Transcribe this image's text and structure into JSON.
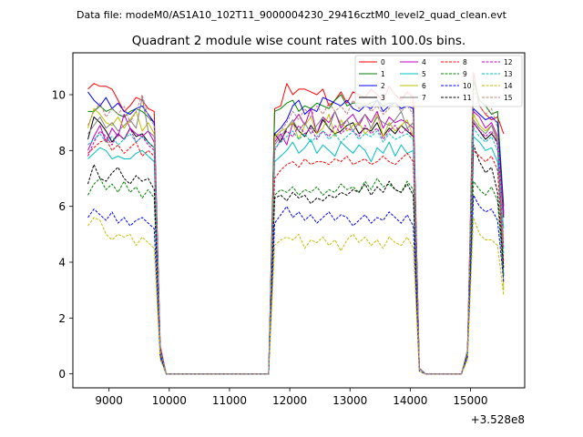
{
  "figure": {
    "suptitle": "Data file: modeM0/AS1A10_102T11_9000004230_29416cztM0_level2_quad_clean.evt"
  },
  "chart_data": {
    "type": "line",
    "title": "Quadrant 2 module wise count rates with 100.0s bins.",
    "xlabel": "",
    "ylabel": "",
    "x_offset_label": "+3.528e8",
    "xlim": [
      8400,
      15900
    ],
    "ylim": [
      -0.5,
      11.5
    ],
    "x_ticks": [
      9000,
      10000,
      11000,
      12000,
      13000,
      14000,
      15000
    ],
    "x_tick_labels": [
      "9000",
      "10000",
      "11000",
      "12000",
      "13000",
      "14000",
      "15000"
    ],
    "y_ticks": [
      0,
      2,
      4,
      6,
      8,
      10
    ],
    "y_tick_labels": [
      "0",
      "2",
      "4",
      "6",
      "8",
      "10"
    ],
    "grid": false,
    "legend_position": "top-right",
    "x": [
      8650,
      8750,
      8850,
      8950,
      9050,
      9150,
      9250,
      9350,
      9450,
      9550,
      9650,
      9750,
      9850,
      9950,
      10050,
      10150,
      10250,
      10350,
      10450,
      10550,
      10650,
      10750,
      10850,
      10950,
      11050,
      11150,
      11250,
      11350,
      11450,
      11550,
      11650,
      11750,
      11850,
      11950,
      12050,
      12150,
      12250,
      12350,
      12450,
      12550,
      12650,
      12750,
      12850,
      12950,
      13050,
      13150,
      13250,
      13350,
      13450,
      13550,
      13650,
      13750,
      13850,
      13950,
      14050,
      14150,
      14250,
      14350,
      14450,
      14550,
      14650,
      14750,
      14850,
      14950,
      15050,
      15150,
      15250,
      15350,
      15450,
      15550
    ],
    "series": [
      {
        "name": "0",
        "color": "#ff0000",
        "dashed": false,
        "values": [
          10.2,
          10.4,
          10.3,
          10.3,
          10.2,
          9.8,
          9.4,
          9.6,
          9.9,
          9.8,
          9.5,
          9.4,
          1.0,
          0.0,
          0,
          0,
          0,
          0,
          0,
          0,
          0,
          0,
          0,
          0,
          0,
          0,
          0,
          0,
          0,
          0,
          0,
          9.5,
          9.6,
          10.4,
          10.0,
          10.2,
          10.2,
          10.1,
          10.0,
          10.2,
          9.6,
          9.8,
          10.1,
          9.7,
          10.1,
          10.0,
          9.9,
          10.2,
          10.0,
          9.8,
          10.3,
          10.0,
          9.8,
          10.1,
          9.9,
          0.2,
          0,
          0,
          0,
          0,
          0,
          0,
          0,
          0.8,
          10.8,
          9.6,
          9.3,
          9.1,
          9.2,
          8.6
        ]
      },
      {
        "name": "1",
        "color": "#008000",
        "dashed": false,
        "values": [
          9.4,
          9.4,
          9.6,
          9.4,
          9.5,
          9.3,
          9.2,
          9.4,
          9.5,
          9.4,
          9.2,
          9.0,
          0.9,
          0.0,
          0,
          0,
          0,
          0,
          0,
          0,
          0,
          0,
          0,
          0,
          0,
          0,
          0,
          0,
          0,
          0,
          0,
          9.4,
          9.5,
          9.7,
          9.8,
          9.4,
          9.6,
          9.5,
          9.7,
          9.6,
          9.5,
          9.8,
          10.0,
          9.6,
          9.7,
          9.7,
          9.6,
          9.7,
          9.8,
          9.6,
          9.7,
          9.7,
          9.5,
          9.6,
          9.5,
          0.2,
          0,
          0,
          0,
          0,
          0,
          0,
          0,
          0.8,
          10.5,
          9.8,
          9.6,
          9.3,
          9.4,
          6.0
        ]
      },
      {
        "name": "2",
        "color": "#0000ff",
        "dashed": false,
        "values": [
          10.1,
          9.8,
          9.6,
          9.9,
          9.5,
          9.7,
          9.4,
          9.3,
          9.5,
          9.6,
          9.3,
          9.0,
          0.9,
          0.0,
          0,
          0,
          0,
          0,
          0,
          0,
          0,
          0,
          0,
          0,
          0,
          0,
          0,
          0,
          0,
          0,
          0,
          8.6,
          8.8,
          9.1,
          9.6,
          9.8,
          9.3,
          9.5,
          9.4,
          9.9,
          9.8,
          9.7,
          9.6,
          9.8,
          9.5,
          9.4,
          9.6,
          9.5,
          9.8,
          9.4,
          9.6,
          9.7,
          9.5,
          9.6,
          9.5,
          0.2,
          0,
          0,
          0,
          0,
          0,
          0,
          0,
          0.8,
          9.5,
          9.3,
          9.1,
          9.2,
          9.0,
          5.8
        ]
      },
      {
        "name": "3",
        "color": "#000000",
        "dashed": false,
        "values": [
          8.4,
          9.2,
          9.0,
          8.7,
          8.3,
          8.6,
          8.4,
          8.8,
          8.5,
          8.6,
          8.3,
          8.1,
          0.8,
          0.0,
          0,
          0,
          0,
          0,
          0,
          0,
          0,
          0,
          0,
          0,
          0,
          0,
          0,
          0,
          0,
          0,
          0,
          8.6,
          8.3,
          8.8,
          9.0,
          8.7,
          8.5,
          8.9,
          8.6,
          9.1,
          8.8,
          8.6,
          8.7,
          8.9,
          9.0,
          8.6,
          8.8,
          8.7,
          9.0,
          8.5,
          8.8,
          8.6,
          8.9,
          8.7,
          8.5,
          0.2,
          0,
          0,
          0,
          0,
          0,
          0,
          0,
          0.8,
          9.0,
          8.7,
          8.4,
          8.6,
          8.3,
          5.6
        ]
      },
      {
        "name": "4",
        "color": "#bf00bf",
        "dashed": false,
        "values": [
          8.0,
          8.5,
          8.9,
          8.3,
          8.8,
          8.5,
          9.3,
          8.8,
          8.6,
          8.5,
          8.7,
          8.3,
          0.8,
          0.0,
          0,
          0,
          0,
          0,
          0,
          0,
          0,
          0,
          0,
          0,
          0,
          0,
          0,
          0,
          0,
          0,
          0,
          8.3,
          8.6,
          8.2,
          9.0,
          9.3,
          8.9,
          9.5,
          8.6,
          9.2,
          9.0,
          9.4,
          8.8,
          9.1,
          9.3,
          8.9,
          9.3,
          9.0,
          9.4,
          8.8,
          9.2,
          9.0,
          9.1,
          9.0,
          8.8,
          0.2,
          0,
          0,
          0,
          0,
          0,
          0,
          0,
          0.8,
          9.4,
          9.2,
          8.8,
          9.0,
          8.5,
          5.7
        ]
      },
      {
        "name": "5",
        "color": "#00bfbf",
        "dashed": false,
        "values": [
          7.7,
          7.9,
          8.1,
          8.0,
          7.7,
          7.8,
          7.7,
          7.7,
          7.9,
          8.0,
          7.8,
          7.6,
          0.8,
          0.0,
          0,
          0,
          0,
          0,
          0,
          0,
          0,
          0,
          0,
          0,
          0,
          0,
          0,
          0,
          0,
          0,
          0,
          7.6,
          7.8,
          8.0,
          8.3,
          7.9,
          8.1,
          8.4,
          7.9,
          8.2,
          8.0,
          7.8,
          8.3,
          8.1,
          7.9,
          8.2,
          8.0,
          7.6,
          8.1,
          7.9,
          8.3,
          7.8,
          8.2,
          7.9,
          8.0,
          0.2,
          0,
          0,
          0,
          0,
          0,
          0,
          0,
          0.8,
          8.5,
          8.3,
          8.0,
          8.1,
          7.6,
          5.2
        ]
      },
      {
        "name": "6",
        "color": "#bfbf00",
        "dashed": false,
        "values": [
          8.8,
          9.5,
          9.3,
          9.0,
          8.9,
          9.2,
          8.8,
          9.1,
          9.4,
          8.7,
          9.0,
          8.6,
          0.8,
          0.0,
          0,
          0,
          0,
          0,
          0,
          0,
          0,
          0,
          0,
          0,
          0,
          0,
          0,
          0,
          0,
          0,
          0,
          8.5,
          8.7,
          8.8,
          9.0,
          8.4,
          8.9,
          9.2,
          8.6,
          8.8,
          9.3,
          8.5,
          9.1,
          8.7,
          8.9,
          9.0,
          8.6,
          8.8,
          9.3,
          8.5,
          9.0,
          8.7,
          8.9,
          9.1,
          8.5,
          0.2,
          0,
          0,
          0,
          0,
          0,
          0,
          0,
          0.8,
          9.3,
          8.9,
          8.7,
          8.9,
          8.4,
          3.0
        ]
      },
      {
        "name": "7",
        "color": "#808080",
        "dashed": false,
        "values": [
          8.6,
          8.9,
          9.2,
          8.8,
          9.0,
          8.7,
          8.9,
          9.1,
          8.8,
          9.9,
          8.7,
          8.5,
          0.8,
          0.0,
          0,
          0,
          0,
          0,
          0,
          0,
          0,
          0,
          0,
          0,
          0,
          0,
          0,
          0,
          0,
          0,
          0,
          8.2,
          8.5,
          8.8,
          9.1,
          8.7,
          9.0,
          8.6,
          8.9,
          9.2,
          8.8,
          9.4,
          8.9,
          9.1,
          8.7,
          9.0,
          9.3,
          8.8,
          9.2,
          9.0,
          8.9,
          9.1,
          9.4,
          8.8,
          9.0,
          0.2,
          0,
          0,
          0,
          0,
          0,
          0,
          0,
          0.8,
          9.1,
          8.8,
          8.6,
          8.9,
          8.3,
          3.5
        ]
      },
      {
        "name": "8",
        "color": "#ff0000",
        "dashed": true,
        "values": [
          7.9,
          8.1,
          8.3,
          8.4,
          8.0,
          8.2,
          7.9,
          8.1,
          8.3,
          7.8,
          8.0,
          7.8,
          0.8,
          0.0,
          0,
          0,
          0,
          0,
          0,
          0,
          0,
          0,
          0,
          0,
          0,
          0,
          0,
          0,
          0,
          0,
          0,
          7.0,
          7.3,
          7.5,
          7.6,
          7.4,
          7.7,
          7.5,
          7.6,
          7.6,
          7.5,
          7.7,
          7.6,
          7.8,
          7.5,
          7.6,
          7.7,
          7.5,
          7.6,
          7.8,
          7.6,
          7.5,
          7.7,
          7.9,
          7.6,
          0.2,
          0,
          0,
          0,
          0,
          0,
          0,
          0,
          0.8,
          8.0,
          7.8,
          7.6,
          7.8,
          7.3,
          4.0
        ]
      },
      {
        "name": "9",
        "color": "#008000",
        "dashed": true,
        "values": [
          6.4,
          6.8,
          7.0,
          6.6,
          6.8,
          6.5,
          6.9,
          6.5,
          6.7,
          6.3,
          6.6,
          6.3,
          0.7,
          0.0,
          0,
          0,
          0,
          0,
          0,
          0,
          0,
          0,
          0,
          0,
          0,
          0,
          0,
          0,
          0,
          0,
          0,
          6.4,
          6.6,
          6.5,
          6.7,
          6.4,
          6.6,
          6.5,
          6.7,
          6.4,
          6.6,
          6.5,
          6.8,
          6.6,
          6.7,
          6.5,
          6.9,
          6.6,
          7.0,
          6.7,
          6.8,
          6.6,
          6.5,
          6.9,
          6.6,
          0.2,
          0,
          0,
          0,
          0,
          0,
          0,
          0,
          0.7,
          6.9,
          6.6,
          6.4,
          6.7,
          6.2,
          3.5
        ]
      },
      {
        "name": "10",
        "color": "#0000ff",
        "dashed": true,
        "values": [
          5.6,
          5.9,
          5.7,
          5.5,
          5.8,
          5.4,
          5.6,
          5.3,
          5.5,
          5.6,
          5.4,
          5.2,
          0.6,
          0.0,
          0,
          0,
          0,
          0,
          0,
          0,
          0,
          0,
          0,
          0,
          0,
          0,
          0,
          0,
          0,
          0,
          0,
          5.4,
          5.7,
          6.0,
          5.6,
          5.8,
          5.5,
          5.7,
          5.4,
          5.6,
          5.8,
          5.5,
          5.7,
          5.6,
          5.3,
          5.5,
          5.7,
          5.4,
          5.6,
          5.5,
          5.8,
          5.6,
          5.4,
          5.7,
          5.3,
          0.1,
          0,
          0,
          0,
          0,
          0,
          0,
          0,
          0.6,
          6.4,
          6.0,
          5.8,
          5.9,
          5.5,
          3.3
        ]
      },
      {
        "name": "11",
        "color": "#000000",
        "dashed": true,
        "values": [
          6.8,
          7.5,
          7.0,
          6.9,
          7.2,
          7.4,
          7.0,
          6.8,
          7.1,
          6.9,
          7.0,
          6.6,
          0.7,
          0.0,
          0,
          0,
          0,
          0,
          0,
          0,
          0,
          0,
          0,
          0,
          0,
          0,
          0,
          0,
          0,
          0,
          0,
          6.3,
          6.4,
          6.2,
          6.5,
          6.3,
          6.4,
          6.1,
          6.3,
          6.2,
          6.4,
          6.3,
          6.5,
          6.4,
          6.6,
          6.5,
          6.8,
          6.4,
          6.7,
          6.5,
          6.9,
          6.6,
          6.5,
          6.8,
          6.4,
          0.2,
          0,
          0,
          0,
          0,
          0,
          0,
          0,
          0.7,
          8.2,
          7.6,
          7.2,
          7.4,
          6.5,
          3.8
        ]
      },
      {
        "name": "12",
        "color": "#bf00bf",
        "dashed": true,
        "values": [
          7.8,
          8.3,
          8.7,
          8.5,
          8.2,
          8.6,
          8.4,
          8.8,
          8.3,
          8.5,
          8.2,
          8.0,
          0.8,
          0.0,
          0,
          0,
          0,
          0,
          0,
          0,
          0,
          0,
          0,
          0,
          0,
          0,
          0,
          0,
          0,
          0,
          0,
          8.0,
          8.4,
          8.7,
          8.5,
          8.9,
          8.6,
          8.8,
          8.4,
          8.7,
          8.5,
          8.9,
          8.6,
          8.8,
          8.7,
          8.5,
          8.9,
          8.6,
          8.8,
          8.4,
          8.7,
          8.9,
          8.6,
          8.8,
          8.5,
          0.2,
          0,
          0,
          0,
          0,
          0,
          0,
          0,
          0.8,
          9.0,
          8.7,
          8.5,
          8.7,
          8.2,
          4.5
        ]
      },
      {
        "name": "13",
        "color": "#00bfbf",
        "dashed": true,
        "values": [
          8.2,
          8.4,
          8.6,
          8.3,
          8.5,
          8.2,
          8.4,
          8.6,
          8.3,
          8.5,
          8.3,
          8.1,
          0.8,
          0.0,
          0,
          0,
          0,
          0,
          0,
          0,
          0,
          0,
          0,
          0,
          0,
          0,
          0,
          0,
          0,
          0,
          0,
          8.1,
          8.3,
          8.5,
          8.7,
          8.4,
          8.6,
          8.3,
          8.5,
          8.7,
          8.4,
          8.6,
          8.3,
          8.5,
          8.7,
          8.4,
          8.6,
          8.5,
          8.7,
          8.3,
          8.6,
          8.4,
          8.5,
          8.6,
          8.4,
          0.2,
          0,
          0,
          0,
          0,
          0,
          0,
          0,
          0.8,
          8.8,
          8.5,
          8.3,
          8.5,
          8.0,
          4.3
        ]
      },
      {
        "name": "14",
        "color": "#bfbf00",
        "dashed": true,
        "values": [
          5.3,
          5.6,
          5.5,
          5.0,
          4.8,
          5.0,
          4.9,
          5.0,
          4.6,
          4.9,
          4.7,
          4.5,
          0.5,
          0.0,
          0,
          0,
          0,
          0,
          0,
          0,
          0,
          0,
          0,
          0,
          0,
          0,
          0,
          0,
          0,
          0,
          0,
          4.6,
          4.8,
          4.9,
          4.8,
          5.0,
          4.5,
          4.8,
          4.7,
          4.9,
          4.6,
          4.8,
          4.4,
          4.8,
          5.0,
          4.7,
          4.9,
          4.6,
          4.8,
          4.5,
          4.9,
          4.7,
          4.6,
          4.9,
          4.5,
          0.1,
          0,
          0,
          0,
          0,
          0,
          0,
          0,
          0.5,
          5.6,
          5.0,
          4.8,
          4.8,
          4.6,
          2.8
        ]
      },
      {
        "name": "15",
        "color": "#bf8080",
        "dashed": true,
        "values": [
          8.9,
          9.4,
          9.7,
          9.2,
          9.5,
          9.3,
          9.6,
          9.0,
          9.4,
          10.0,
          9.2,
          8.9,
          0.9,
          0.0,
          0,
          0,
          0,
          0,
          0,
          0,
          0,
          0,
          0,
          0,
          0,
          0,
          0,
          0,
          0,
          0,
          0,
          8.4,
          8.7,
          9.0,
          9.4,
          9.1,
          9.5,
          9.2,
          9.6,
          9.3,
          9.7,
          9.4,
          9.6,
          9.3,
          9.8,
          9.5,
          9.7,
          9.4,
          9.6,
          9.3,
          9.5,
          9.7,
          9.4,
          9.6,
          9.3,
          0.2,
          0,
          0,
          0,
          0,
          0,
          0,
          0,
          0.9,
          10.3,
          9.6,
          9.3,
          9.5,
          8.8,
          4.8
        ]
      }
    ]
  }
}
